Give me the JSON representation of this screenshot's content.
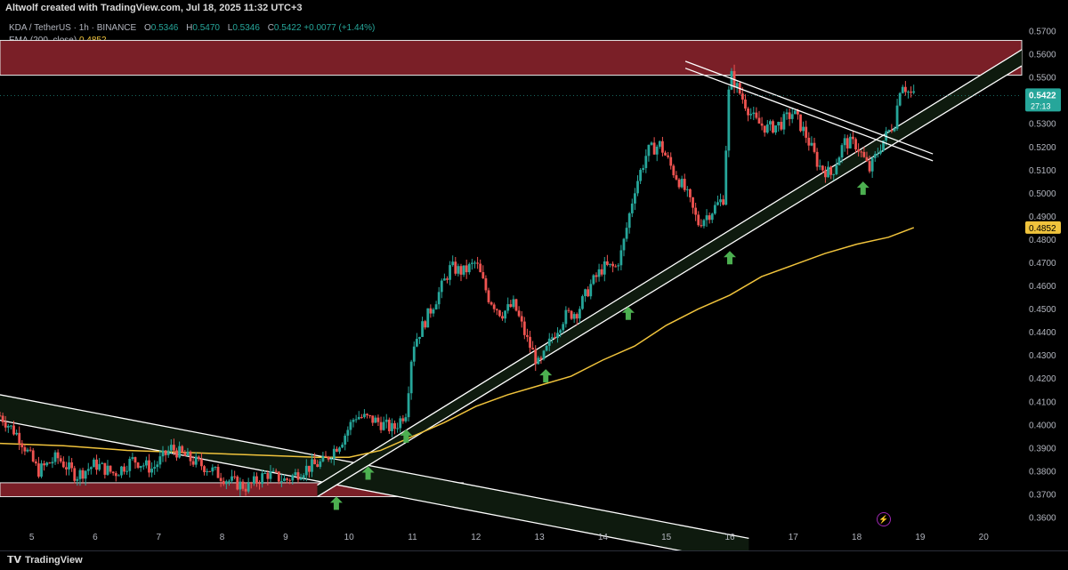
{
  "header": {
    "credit": "Altwolf created with TradingView.com, Jul 18, 2025 11:32 UTC+3"
  },
  "legend": {
    "symbol": "KDA / TetherUS · 1h · BINANCE",
    "open_label": "O",
    "open": "0.5346",
    "high_label": "H",
    "high": "0.5470",
    "low_label": "L",
    "low": "0.5346",
    "close_label": "C",
    "close": "0.5422",
    "change": "+0.0077 (+1.44%)",
    "ema_label": "EMA (200, close)",
    "ema_value": "0.4852"
  },
  "footer": {
    "brand": "TradingView"
  },
  "chart_data": {
    "type": "candlestick",
    "title": "",
    "ylim": [
      0.355,
      0.575
    ],
    "y_ticks": [
      "0.5700",
      "0.5600",
      "0.5500",
      "0.5300",
      "0.5200",
      "0.5100",
      "0.5000",
      "0.4900",
      "0.4800",
      "0.4700",
      "0.4600",
      "0.4500",
      "0.4400",
      "0.4300",
      "0.4200",
      "0.4100",
      "0.4000",
      "0.3900",
      "0.3800",
      "0.3700",
      "0.3600"
    ],
    "x_ticks": [
      "5",
      "6",
      "7",
      "8",
      "9",
      "10",
      "11",
      "12",
      "13",
      "14",
      "15",
      "16",
      "17",
      "18",
      "19",
      "20"
    ],
    "last_price": "0.5422",
    "countdown": "27:13",
    "ema_tag": "0.4852",
    "colors": {
      "up": "#26a69a",
      "down": "#ef5350",
      "ema": "#f0c33c",
      "zone": "#7a1f27",
      "channel": "#0e1a0e",
      "price_tag": "#26a69a",
      "ema_tag": "#f0c33c"
    },
    "price_path": [
      [
        4.5,
        0.404
      ],
      [
        4.8,
        0.395
      ],
      [
        5.1,
        0.38
      ],
      [
        5.4,
        0.386
      ],
      [
        5.7,
        0.378
      ],
      [
        6.0,
        0.383
      ],
      [
        6.3,
        0.379
      ],
      [
        6.6,
        0.385
      ],
      [
        6.9,
        0.381
      ],
      [
        7.2,
        0.39
      ],
      [
        7.5,
        0.385
      ],
      [
        7.8,
        0.381
      ],
      [
        8.1,
        0.376
      ],
      [
        8.4,
        0.373
      ],
      [
        8.7,
        0.379
      ],
      [
        9.0,
        0.376
      ],
      [
        9.3,
        0.381
      ],
      [
        9.6,
        0.384
      ],
      [
        9.9,
        0.394
      ],
      [
        10.1,
        0.404
      ],
      [
        10.4,
        0.402
      ],
      [
        10.7,
        0.398
      ],
      [
        10.9,
        0.406
      ],
      [
        11.0,
        0.434
      ],
      [
        11.2,
        0.445
      ],
      [
        11.4,
        0.456
      ],
      [
        11.6,
        0.468
      ],
      [
        11.8,
        0.466
      ],
      [
        12.0,
        0.47
      ],
      [
        12.2,
        0.455
      ],
      [
        12.4,
        0.448
      ],
      [
        12.6,
        0.452
      ],
      [
        12.8,
        0.437
      ],
      [
        13.0,
        0.425
      ],
      [
        13.2,
        0.438
      ],
      [
        13.4,
        0.447
      ],
      [
        13.6,
        0.449
      ],
      [
        13.8,
        0.46
      ],
      [
        14.0,
        0.468
      ],
      [
        14.2,
        0.468
      ],
      [
        14.3,
        0.475
      ],
      [
        14.5,
        0.502
      ],
      [
        14.7,
        0.518
      ],
      [
        14.9,
        0.521
      ],
      [
        15.1,
        0.51
      ],
      [
        15.3,
        0.501
      ],
      [
        15.5,
        0.487
      ],
      [
        15.7,
        0.492
      ],
      [
        15.9,
        0.498
      ],
      [
        16.0,
        0.552
      ],
      [
        16.2,
        0.541
      ],
      [
        16.4,
        0.531
      ],
      [
        16.6,
        0.528
      ],
      [
        16.8,
        0.53
      ],
      [
        17.0,
        0.535
      ],
      [
        17.2,
        0.525
      ],
      [
        17.4,
        0.512
      ],
      [
        17.6,
        0.508
      ],
      [
        17.8,
        0.522
      ],
      [
        18.0,
        0.521
      ],
      [
        18.2,
        0.51
      ],
      [
        18.4,
        0.522
      ],
      [
        18.6,
        0.531
      ],
      [
        18.7,
        0.549
      ],
      [
        18.8,
        0.544
      ],
      [
        18.9,
        0.542
      ]
    ],
    "ema_path": [
      [
        4.5,
        0.392
      ],
      [
        5.5,
        0.391
      ],
      [
        6.5,
        0.389
      ],
      [
        7.5,
        0.388
      ],
      [
        8.5,
        0.387
      ],
      [
        9.5,
        0.386
      ],
      [
        10.0,
        0.386
      ],
      [
        10.5,
        0.389
      ],
      [
        11.0,
        0.395
      ],
      [
        11.5,
        0.401
      ],
      [
        12.0,
        0.408
      ],
      [
        12.5,
        0.413
      ],
      [
        13.0,
        0.417
      ],
      [
        13.5,
        0.421
      ],
      [
        14.0,
        0.428
      ],
      [
        14.5,
        0.434
      ],
      [
        15.0,
        0.443
      ],
      [
        15.5,
        0.45
      ],
      [
        16.0,
        0.456
      ],
      [
        16.5,
        0.464
      ],
      [
        17.0,
        0.469
      ],
      [
        17.5,
        0.474
      ],
      [
        18.0,
        0.478
      ],
      [
        18.5,
        0.481
      ],
      [
        18.9,
        0.4852
      ]
    ],
    "zones": [
      {
        "x0": 4.5,
        "x1": 20.6,
        "y0": 0.551,
        "y1": 0.566
      },
      {
        "x0": 4.5,
        "x1": 11.8,
        "y0": 0.369,
        "y1": 0.375
      }
    ],
    "channels": [
      {
        "x0": 4.5,
        "y0a": 0.413,
        "y0b": 0.402,
        "x1": 16.3,
        "y1a": 0.351,
        "y1b": 0.34
      },
      {
        "x0": 9.5,
        "y0a": 0.374,
        "y0b": 0.369,
        "x1": 20.6,
        "y1a": 0.562,
        "y1b": 0.555
      }
    ],
    "lines": [
      {
        "x0": 15.3,
        "y0": 0.557,
        "x1": 19.2,
        "y1": 0.517
      },
      {
        "x0": 15.3,
        "y0": 0.554,
        "x1": 19.2,
        "y1": 0.514
      }
    ],
    "arrows": [
      {
        "x": 9.8,
        "y": 0.366
      },
      {
        "x": 10.3,
        "y": 0.379
      },
      {
        "x": 10.9,
        "y": 0.395
      },
      {
        "x": 13.1,
        "y": 0.421
      },
      {
        "x": 14.4,
        "y": 0.448
      },
      {
        "x": 16.0,
        "y": 0.472
      },
      {
        "x": 18.1,
        "y": 0.502
      }
    ]
  }
}
